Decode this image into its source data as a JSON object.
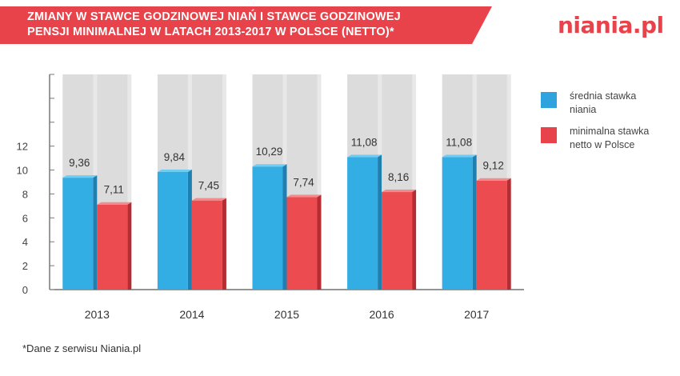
{
  "header": {
    "title_line1": "ZMIANY W STAWCE GODZINOWEJ NIAŃ I STAWCE GODZINOWEJ",
    "title_line2": "PENSJI MINIMALNEJ W LATACH 2013-2017 W POLSCE (NETTO)*",
    "logo": "niania.pl",
    "banner_color": "#e8424a"
  },
  "footnote": "*Dane z serwisu Niania.pl",
  "chart_data": {
    "type": "bar",
    "categories": [
      "2013",
      "2014",
      "2015",
      "2016",
      "2017"
    ],
    "series": [
      {
        "name": "średnia stawka niania",
        "values": [
          9.36,
          9.84,
          10.29,
          11.08,
          11.08
        ],
        "labels": [
          "9,36",
          "9,84",
          "10,29",
          "11,08",
          "11,08"
        ],
        "color": "#2ea3dd"
      },
      {
        "name": "minimalna stawka netto w Polsce",
        "values": [
          7.11,
          7.45,
          7.74,
          8.16,
          9.12
        ],
        "labels": [
          "7,11",
          "7,45",
          "7,74",
          "8,16",
          "9,12"
        ],
        "color": "#e8424a"
      }
    ],
    "yticks": [
      "0",
      "2",
      "4",
      "6",
      "8",
      "10",
      "12"
    ],
    "ylim": [
      0,
      18
    ],
    "grid": true,
    "legend": "right"
  }
}
